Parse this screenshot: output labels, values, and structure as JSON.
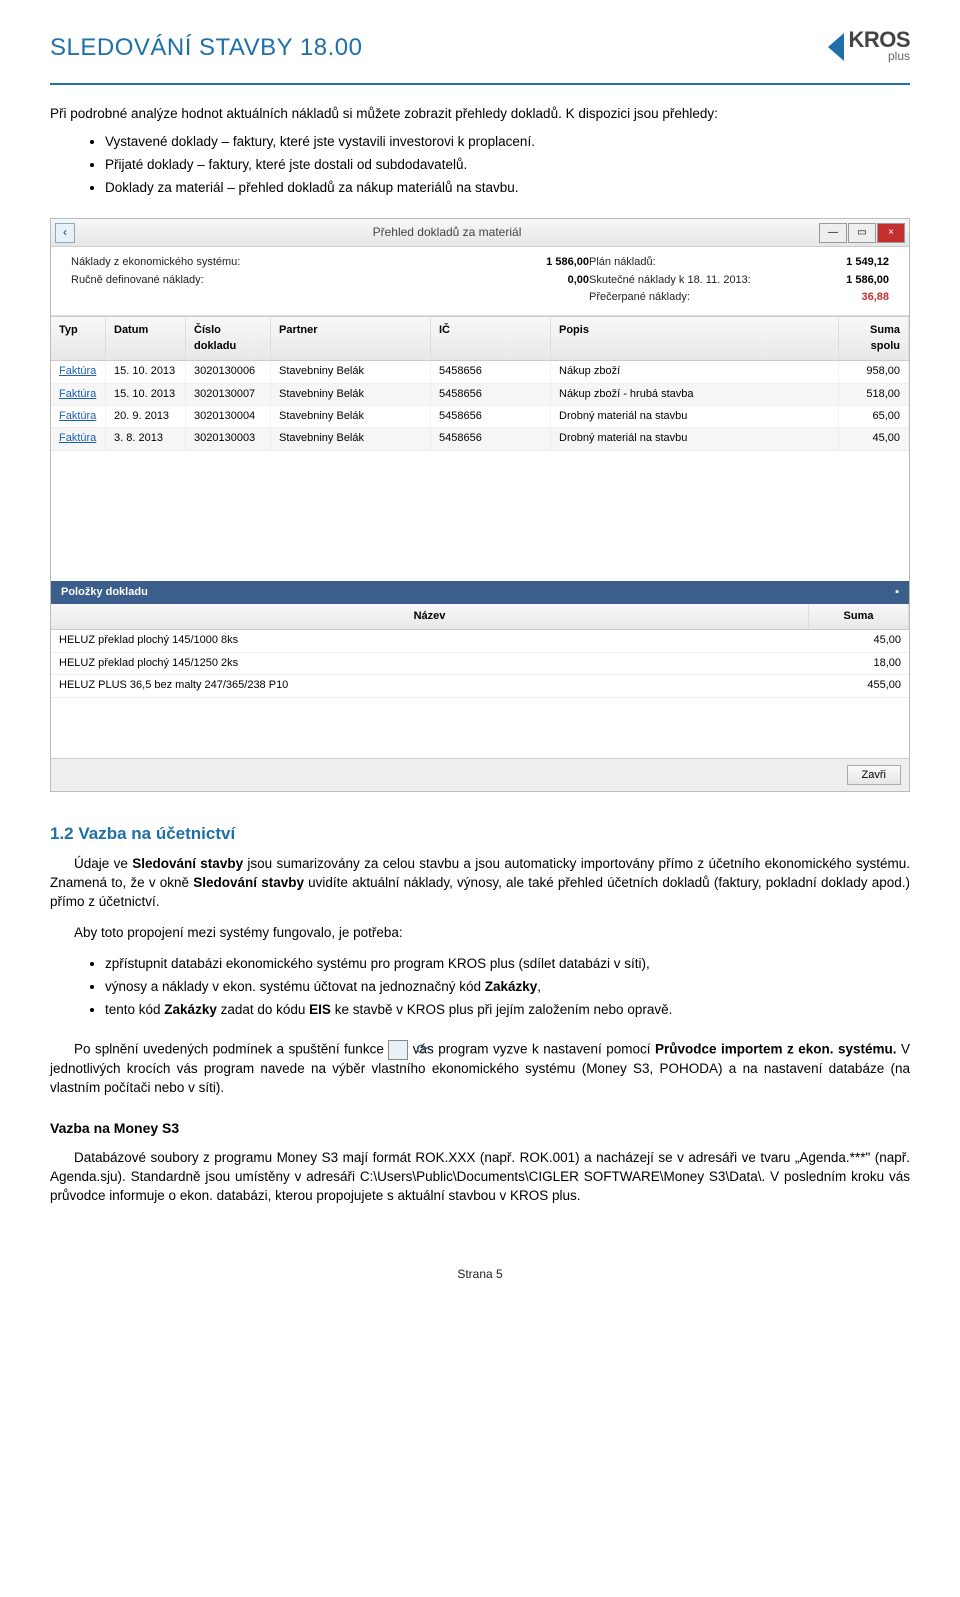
{
  "header": {
    "title": "SLEDOVÁNÍ STAVBY 18.00",
    "logo_main": "KROS",
    "logo_sub": "plus"
  },
  "intro": {
    "text": "Při podrobné analýze hodnot aktuálních nákladů si můžete zobrazit přehledy dokladů. K dispozici jsou přehledy:",
    "bullets": [
      "Vystavené doklady – faktury, které jste vystavili investorovi k proplacení.",
      "Přijaté doklady – faktury, které jste dostali od subdodavatelů.",
      "Doklady za materiál – přehled dokladů za nákup materiálů na stavbu."
    ]
  },
  "screenshot": {
    "title": "Přehled dokladů za materiál",
    "summary_left": [
      {
        "label": "Náklady z ekonomického systému:",
        "value": "1 586,00"
      },
      {
        "label": "Ručně definované náklady:",
        "value": "0,00"
      }
    ],
    "summary_right": [
      {
        "label": "Plán nákladů:",
        "value": "1 549,12",
        "cls": ""
      },
      {
        "label": "Skutečné náklady k 18. 11. 2013:",
        "value": "1 586,00",
        "cls": ""
      },
      {
        "label": "Přečerpané náklady:",
        "value": "36,88",
        "cls": "overdrawn"
      }
    ],
    "grid_headers": {
      "typ": "Typ",
      "datum": "Datum",
      "cislo": "Číslo dokladu",
      "partner": "Partner",
      "ic": "IČ",
      "popis": "Popis",
      "suma": "Suma spolu"
    },
    "grid_rows": [
      {
        "typ": "Faktúra",
        "datum": "15. 10. 2013",
        "cislo": "3020130006",
        "partner": "Stavebniny Belák",
        "ic": "5458656",
        "popis": "Nákup zboží",
        "suma": "958,00"
      },
      {
        "typ": "Faktúra",
        "datum": "15. 10. 2013",
        "cislo": "3020130007",
        "partner": "Stavebniny Belák",
        "ic": "5458656",
        "popis": "Nákup zboží - hrubá stavba",
        "suma": "518,00"
      },
      {
        "typ": "Faktúra",
        "datum": "20. 9. 2013",
        "cislo": "3020130004",
        "partner": "Stavebniny Belák",
        "ic": "5458656",
        "popis": "Drobný materiál na stavbu",
        "suma": "65,00"
      },
      {
        "typ": "Faktúra",
        "datum": "3. 8. 2013",
        "cislo": "3020130003",
        "partner": "Stavebniny Belák",
        "ic": "5458656",
        "popis": "Drobný materiál na stavbu",
        "suma": "45,00"
      }
    ],
    "polozky": {
      "title": "Položky dokladu",
      "headers": {
        "nazev": "Název",
        "suma": "Suma"
      },
      "rows": [
        {
          "nazev": "HELUZ překlad plochý 145/1000 8ks",
          "suma": "45,00"
        },
        {
          "nazev": "HELUZ překlad plochý 145/1250 2ks",
          "suma": "18,00"
        },
        {
          "nazev": "HELUZ PLUS 36,5 bez malty 247/365/238 P10",
          "suma": "455,00"
        }
      ]
    },
    "close_btn": "Zavři"
  },
  "section12": {
    "heading": "1.2 Vazba na účetnictví",
    "p1a": "Údaje ve ",
    "p1b": "Sledování stavby",
    "p1c": " jsou sumarizovány za celou stavbu a jsou automaticky importovány přímo z účetního ekonomického systému. Znamená to, že v okně ",
    "p1d": "Sledování stavby",
    "p1e": " uvidíte aktuální náklady, výnosy, ale také přehled účetních dokladů (faktury, pokladní doklady apod.) přímo z účetnictví.",
    "p2": "Aby toto propojení mezi systémy fungovalo, je potřeba:",
    "bullets": [
      {
        "pre": "zpřístupnit databázi ekonomického systému pro program KROS plus (sdílet databázi v síti),"
      },
      {
        "pre": "výnosy a náklady v ekon. systému účtovat na jednoznačný kód ",
        "b1": "Zakázky",
        "post": ","
      },
      {
        "pre": "tento kód ",
        "b1": "Zakázky",
        "mid": " zadat do kódu ",
        "b2": "EIS",
        "post": " ke stavbě v KROS plus při jejím založením nebo opravě."
      }
    ],
    "p3a": "Po splnění uvedených podmínek a spuštění funkce ",
    "p3b": " vás program vyzve k nastavení pomocí ",
    "p3c": "Průvodce importem z ekon. systému.",
    "p3d": " V jednotlivých krocích vás program navede na výběr vlastního ekonomického systému (Money S3, POHODA) a na nastavení databáze (na vlastním počítači nebo v síti)."
  },
  "moneys3": {
    "heading": "Vazba na Money S3",
    "p": "Databázové soubory z programu Money S3 mají formát ROK.XXX (např. ROK.001) a nacházejí se v adresáři ve tvaru „Agenda.***\" (např. Agenda.sju). Standardně jsou umístěny v adresáři C:\\Users\\Public\\Documents\\CIGLER SOFTWARE\\Money S3\\Data\\. V posledním kroku vás průvodce informuje o ekon. databázi, kterou propojujete s aktuální stavbou v KROS plus."
  },
  "footer": "Strana 5"
}
